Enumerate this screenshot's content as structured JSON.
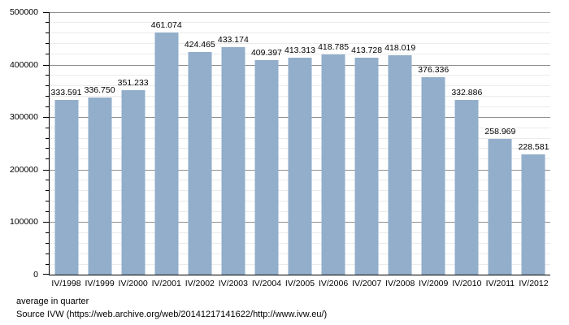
{
  "chart_data": {
    "type": "bar",
    "title": "",
    "xlabel": "",
    "ylabel": "",
    "categories": [
      "IV/1998",
      "IV/1999",
      "IV/2000",
      "IV/2001",
      "IV/2002",
      "IV/2003",
      "IV/2004",
      "IV/2005",
      "IV/2006",
      "IV/2007",
      "IV/2008",
      "IV/2009",
      "IV/2010",
      "IV/2011",
      "IV/2012"
    ],
    "values": [
      333591,
      336750,
      351233,
      461074,
      424465,
      433174,
      409397,
      413313,
      418785,
      413728,
      418019,
      376336,
      332886,
      258969,
      228581
    ],
    "bar_labels": [
      "333.591",
      "336.750",
      "351.233",
      "461.074",
      "424.465",
      "433.174",
      "409.397",
      "413.313",
      "418.785",
      "413.728",
      "418.019",
      "376.336",
      "332.886",
      "258.969",
      "228.581"
    ],
    "ylim": [
      0,
      500000
    ],
    "y_major_ticks": [
      0,
      100000,
      200000,
      300000,
      400000,
      500000
    ],
    "y_tick_labels": [
      "0",
      "100000",
      "200000",
      "300000",
      "400000",
      "500000"
    ],
    "y_minor_step": 20000,
    "grid": true,
    "legend_position": "none"
  },
  "footer": {
    "line1": "average in quarter",
    "line2": "Source IVW (https://web.archive.org/web/20141217141622/http://www.ivw.eu/)"
  },
  "colors": {
    "bar": "#92aecb",
    "major_grid": "#8f8f8f",
    "minor_grid": "#ebebeb",
    "axis": "#000000",
    "text": "#000000",
    "background": "#ffffff"
  }
}
